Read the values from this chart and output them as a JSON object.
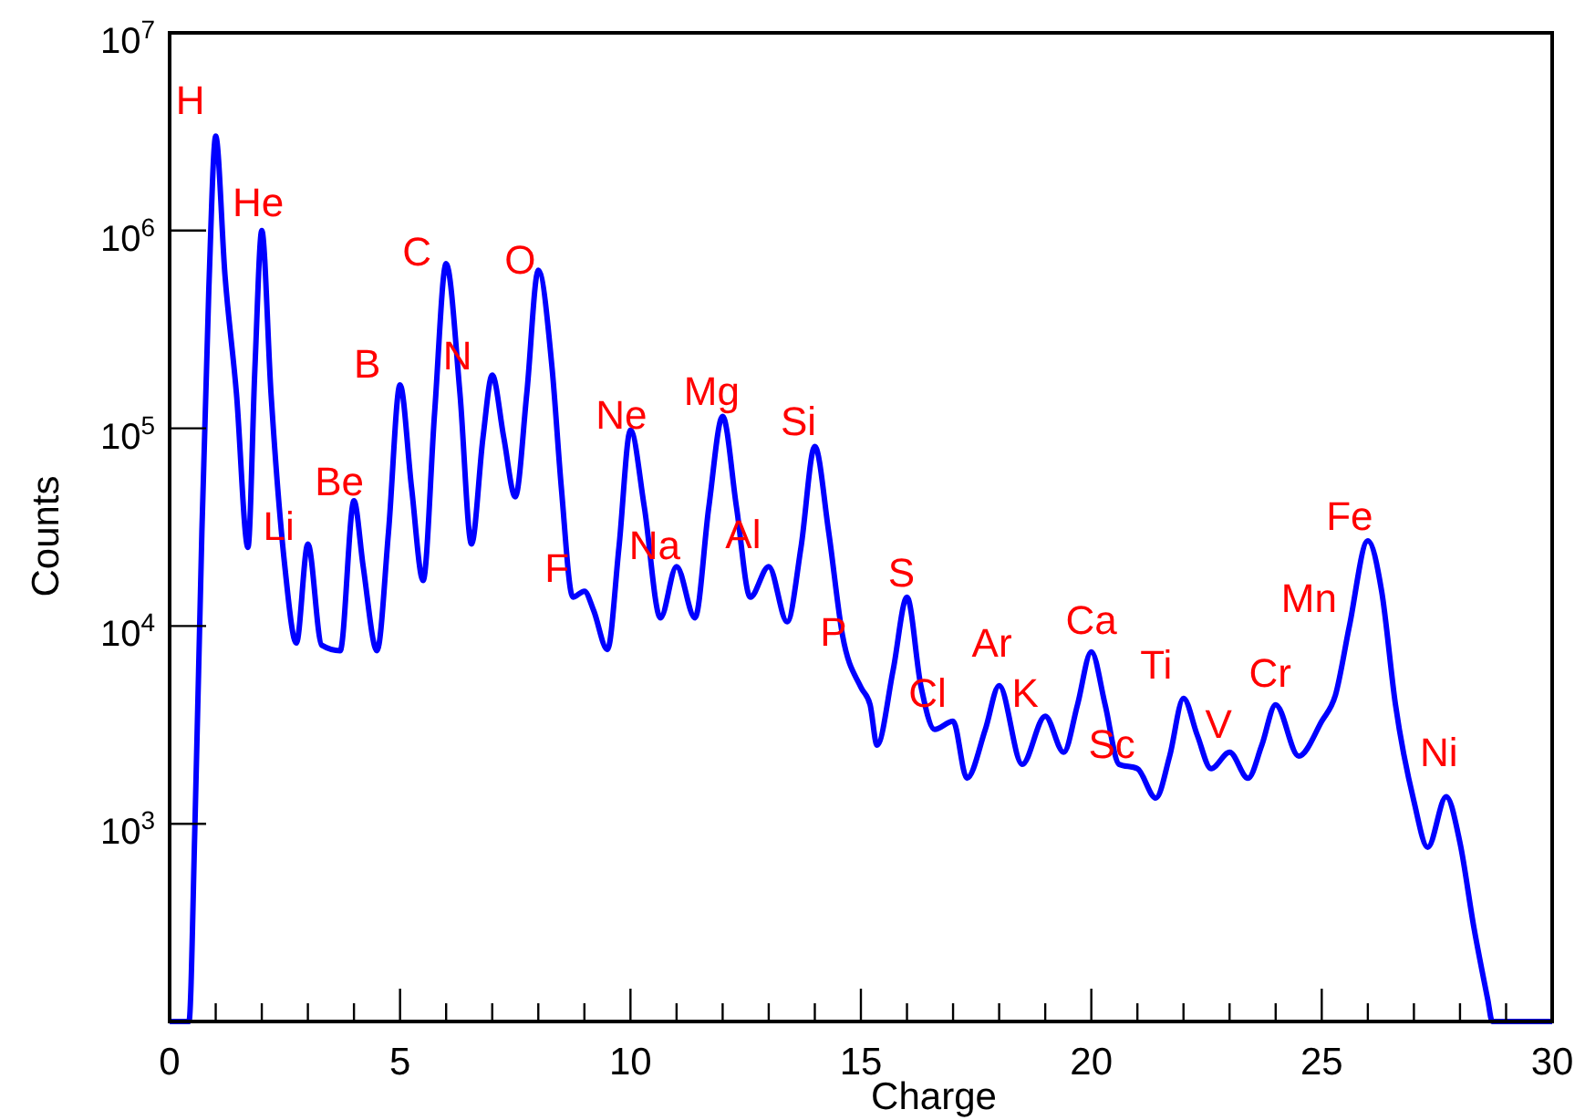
{
  "chart_data": {
    "type": "line",
    "xlabel": "Charge",
    "ylabel": "Counts",
    "log": "y",
    "grid": false,
    "marker": "none",
    "line_style": "solid",
    "xlim": [
      0,
      30
    ],
    "ylim": [
      100,
      10000000
    ],
    "xticks": [
      0,
      {
        "value": 1,
        "label": null
      },
      {
        "value": 2,
        "label": null
      },
      {
        "value": 3,
        "label": null
      },
      {
        "value": 4,
        "label": null
      },
      5,
      {
        "value": 6,
        "label": null
      },
      {
        "value": 7,
        "label": null
      },
      {
        "value": 8,
        "label": null
      },
      {
        "value": 9,
        "label": null
      },
      10,
      {
        "value": 11,
        "label": null
      },
      {
        "value": 12,
        "label": null
      },
      {
        "value": 13,
        "label": null
      },
      {
        "value": 14,
        "label": null
      },
      15,
      {
        "value": 16,
        "label": null
      },
      {
        "value": 17,
        "label": null
      },
      {
        "value": 18,
        "label": null
      },
      {
        "value": 19,
        "label": null
      },
      20,
      {
        "value": 21,
        "label": null
      },
      {
        "value": 22,
        "label": null
      },
      {
        "value": 23,
        "label": null
      },
      {
        "value": 24,
        "label": null
      },
      25,
      {
        "value": 26,
        "label": null
      },
      {
        "value": 27,
        "label": null
      },
      {
        "value": 28,
        "label": null
      },
      {
        "value": 29,
        "label": null
      },
      30
    ],
    "yticks": [
      {
        "value": 1000,
        "label": "10$^{3}$"
      },
      {
        "value": 10000,
        "label": "10$^{4}$"
      },
      {
        "value": 100000,
        "label": "10$^{5}$"
      },
      {
        "value": 1000000,
        "label": "10$^{6}$"
      },
      {
        "value": 10000000,
        "label": "10$^{7}$"
      }
    ],
    "series": [
      {
        "color": "#0000ff",
        "x": [
          0,
          0.42,
          0.55,
          0.7,
          0.85,
          1.0,
          1.2,
          1.45,
          1.7,
          1.85,
          2.0,
          2.2,
          2.5,
          2.75,
          3.0,
          3.3,
          3.7,
          4.0,
          4.2,
          4.5,
          4.75,
          5.0,
          5.25,
          5.5,
          5.75,
          6.0,
          6.3,
          6.55,
          6.8,
          7.0,
          7.25,
          7.5,
          7.75,
          8.0,
          8.3,
          8.5,
          8.75,
          9.0,
          9.2,
          9.5,
          9.75,
          10.0,
          10.3,
          10.65,
          11.0,
          11.4,
          11.7,
          12.0,
          12.3,
          12.6,
          13.0,
          13.4,
          13.7,
          14.0,
          14.3,
          14.6,
          15.0,
          15.2,
          15.35,
          15.7,
          16.0,
          16.3,
          16.6,
          17.0,
          17.3,
          17.7,
          18.0,
          18.5,
          19.0,
          19.4,
          19.7,
          20.0,
          20.3,
          20.6,
          21.0,
          21.4,
          21.7,
          22.0,
          22.3,
          22.6,
          23.0,
          23.4,
          23.7,
          24.0,
          24.5,
          25.0,
          25.3,
          25.6,
          26.0,
          26.3,
          26.6,
          27.0,
          27.3,
          27.7,
          28.0,
          28.3,
          28.6,
          28.7,
          30
        ],
        "values": [
          100,
          100,
          1000,
          30000,
          500000,
          3000000,
          600000,
          150000,
          25000,
          200000,
          1000000,
          150000,
          20000,
          8200,
          26000,
          8000,
          7500,
          43000,
          20000,
          7500,
          30000,
          166000,
          50000,
          17000,
          120000,
          680000,
          150000,
          26000,
          90000,
          186000,
          90000,
          45000,
          150000,
          630000,
          200000,
          50000,
          14000,
          15000,
          12000,
          7600,
          25000,
          98000,
          40000,
          11000,
          20000,
          11000,
          40000,
          115000,
          40000,
          14000,
          20000,
          10500,
          25000,
          81000,
          30000,
          9000,
          4900,
          4000,
          2500,
          6000,
          14000,
          5000,
          3000,
          3300,
          1700,
          3000,
          5000,
          2000,
          3500,
          2300,
          4000,
          7400,
          4000,
          2000,
          1900,
          1350,
          2200,
          4300,
          2800,
          1900,
          2300,
          1700,
          2500,
          4000,
          2200,
          3300,
          4500,
          10000,
          27000,
          15000,
          4000,
          1300,
          760,
          1370,
          800,
          300,
          130,
          100,
          100
        ]
      }
    ],
    "annotations": [
      {
        "text": "H",
        "x": 1.0,
        "y": 3000000
      },
      {
        "text": "He",
        "x": 2.0,
        "y": 1000000
      },
      {
        "text": "Li",
        "x": 3.0,
        "y": 26000
      },
      {
        "text": "Be",
        "x": 4.0,
        "y": 43000
      },
      {
        "text": "B",
        "x": 5.0,
        "y": 166000
      },
      {
        "text": "C",
        "x": 6.0,
        "y": 680000
      },
      {
        "text": "N",
        "x": 7.0,
        "y": 186000
      },
      {
        "text": "O",
        "x": 8.0,
        "y": 630000
      },
      {
        "text": "F",
        "x": 9.0,
        "y": 15000
      },
      {
        "text": "Ne",
        "x": 10.0,
        "y": 98000
      },
      {
        "text": "Na",
        "x": 11.0,
        "y": 20000
      },
      {
        "text": "Mg",
        "x": 12.0,
        "y": 115000
      },
      {
        "text": "Al",
        "x": 13.0,
        "y": 20000
      },
      {
        "text": "Si",
        "x": 14.0,
        "y": 81000
      },
      {
        "text": "P",
        "x": 15.0,
        "y": 4900
      },
      {
        "text": "S",
        "x": 16.0,
        "y": 14000
      },
      {
        "text": "Cl",
        "x": 17.0,
        "y": 3300
      },
      {
        "text": "Ar",
        "x": 18.0,
        "y": 5000
      },
      {
        "text": "K",
        "x": 19.0,
        "y": 3500
      },
      {
        "text": "Ca",
        "x": 20.0,
        "y": 7400
      },
      {
        "text": "Sc",
        "x": 21.0,
        "y": 1900
      },
      {
        "text": "Ti",
        "x": 22.0,
        "y": 4300
      },
      {
        "text": "V",
        "x": 23.0,
        "y": 2300
      },
      {
        "text": "Cr",
        "x": 24.0,
        "y": 4000
      },
      {
        "text": "Mn",
        "x": 25.0,
        "y": 3300
      },
      {
        "text": "Fe",
        "x": 26.0,
        "y": 27000
      },
      {
        "text": "Ni",
        "x": 27.7,
        "y": 1370
      }
    ]
  }
}
